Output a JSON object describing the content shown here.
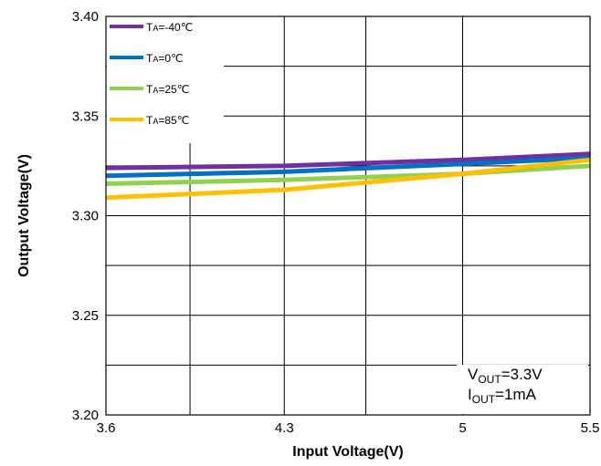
{
  "chart_data": {
    "type": "line",
    "title": "",
    "xlabel": "Input Voltage(V)",
    "ylabel": "Output Voltage(V)",
    "xlim": [
      3.6,
      5.5
    ],
    "ylim": [
      3.2,
      3.4
    ],
    "x_ticks": [
      3.6,
      4.3,
      5,
      5.5
    ],
    "x_tick_labels": [
      "3.6",
      "4.3",
      "5",
      "5.5"
    ],
    "x_grid": [
      3.6,
      3.93,
      4.3,
      4.62,
      5.0,
      5.5
    ],
    "y_ticks": [
      3.2,
      3.25,
      3.3,
      3.35,
      3.4
    ],
    "y_tick_labels": [
      "3.20",
      "3.25",
      "3.30",
      "3.35",
      "3.40"
    ],
    "y_grid": [
      3.2,
      3.225,
      3.25,
      3.275,
      3.3,
      3.325,
      3.35,
      3.375,
      3.4
    ],
    "grid": true,
    "legend": {
      "position": "top-left"
    },
    "series": [
      {
        "name": "TA=-40℃",
        "sub_prefix": "T",
        "sub": "A",
        "suffix": "=-40℃",
        "color": "#7030a0",
        "points": [
          [
            3.6,
            3.324
          ],
          [
            4.3,
            3.325
          ],
          [
            5.0,
            3.328
          ],
          [
            5.5,
            3.331
          ]
        ]
      },
      {
        "name": "TA=0℃",
        "sub_prefix": "T",
        "sub": "A",
        "suffix": "=0℃",
        "color": "#0070c0",
        "points": [
          [
            3.6,
            3.32
          ],
          [
            4.3,
            3.322
          ],
          [
            5.0,
            3.326
          ],
          [
            5.5,
            3.329
          ]
        ]
      },
      {
        "name": "TA=25℃",
        "sub_prefix": "T",
        "sub": "A",
        "suffix": "=25℃",
        "color": "#92d050",
        "points": [
          [
            3.6,
            3.316
          ],
          [
            4.3,
            3.318
          ],
          [
            5.0,
            3.321
          ],
          [
            5.5,
            3.325
          ]
        ]
      },
      {
        "name": "TA=85℃",
        "sub_prefix": "T",
        "sub": "A",
        "suffix": "=85℃",
        "color": "#ffc000",
        "points": [
          [
            3.6,
            3.309
          ],
          [
            4.3,
            3.313
          ],
          [
            5.0,
            3.321
          ],
          [
            5.5,
            3.328
          ]
        ]
      }
    ],
    "annotations": [
      {
        "main": "V",
        "sub": "OUT",
        "rest": "=3.3V"
      },
      {
        "main": "I",
        "sub": "OUT",
        "rest": "=1mA"
      }
    ]
  }
}
